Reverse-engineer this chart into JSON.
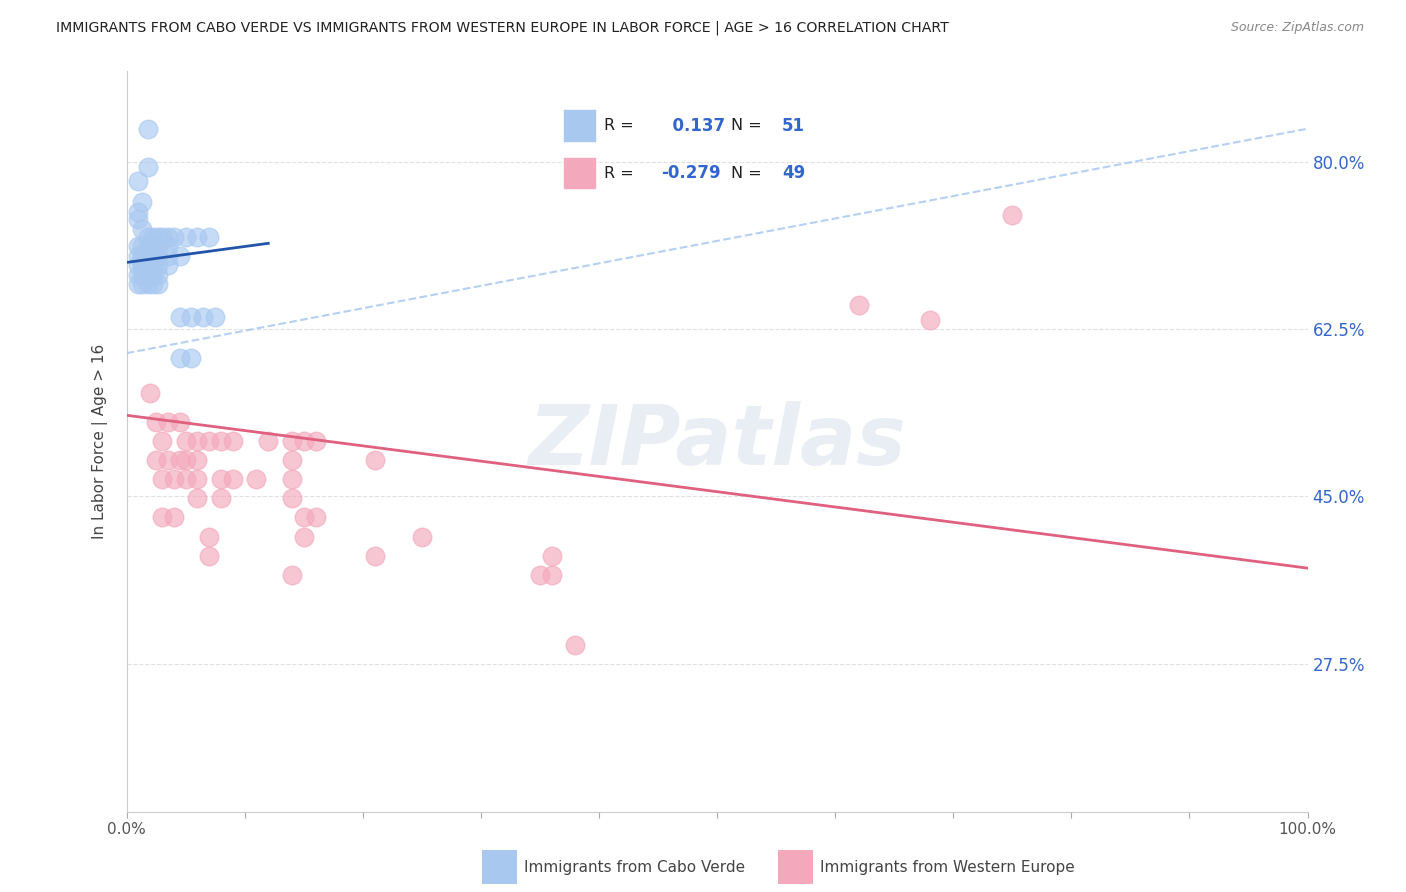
{
  "title": "IMMIGRANTS FROM CABO VERDE VS IMMIGRANTS FROM WESTERN EUROPE IN LABOR FORCE | AGE > 16 CORRELATION CHART",
  "source": "Source: ZipAtlas.com",
  "ylabel": "In Labor Force | Age > 16",
  "ytick_labels": [
    "80.0%",
    "62.5%",
    "45.0%",
    "27.5%"
  ],
  "ytick_values": [
    0.8,
    0.625,
    0.45,
    0.275
  ],
  "xlim": [
    0.0,
    1.0
  ],
  "ylim": [
    0.12,
    0.895
  ],
  "cabo_verde_R": 0.137,
  "cabo_verde_N": 51,
  "western_europe_R": -0.279,
  "western_europe_N": 49,
  "cabo_verde_color": "#A8C8F0",
  "western_europe_color": "#F4A8BC",
  "cabo_verde_line_color": "#2255AA",
  "western_europe_line_color": "#E06080",
  "cabo_verde_line_x0": 0.0,
  "cabo_verde_line_y0": 0.695,
  "cabo_verde_line_x1": 0.12,
  "cabo_verde_line_y1": 0.715,
  "western_europe_line_x0": 0.0,
  "western_europe_line_y0": 0.535,
  "western_europe_line_x1": 1.0,
  "western_europe_line_y1": 0.375,
  "dash_line_x0": 0.0,
  "dash_line_y0": 0.6,
  "dash_line_x1": 1.0,
  "dash_line_y1": 0.835,
  "cabo_verde_scatter_x": [
    0.018,
    0.018,
    0.01,
    0.013,
    0.01,
    0.01,
    0.013,
    0.018,
    0.022,
    0.027,
    0.03,
    0.035,
    0.04,
    0.05,
    0.06,
    0.07,
    0.01,
    0.013,
    0.018,
    0.022,
    0.027,
    0.035,
    0.01,
    0.013,
    0.018,
    0.022,
    0.027,
    0.035,
    0.045,
    0.01,
    0.013,
    0.018,
    0.022,
    0.027,
    0.035,
    0.01,
    0.013,
    0.018,
    0.022,
    0.027,
    0.01,
    0.013,
    0.018,
    0.022,
    0.027,
    0.045,
    0.055,
    0.065,
    0.075,
    0.045,
    0.055
  ],
  "cabo_verde_scatter_y": [
    0.835,
    0.795,
    0.78,
    0.758,
    0.748,
    0.74,
    0.73,
    0.722,
    0.722,
    0.722,
    0.722,
    0.722,
    0.722,
    0.722,
    0.722,
    0.722,
    0.712,
    0.712,
    0.712,
    0.712,
    0.712,
    0.712,
    0.702,
    0.702,
    0.702,
    0.702,
    0.702,
    0.702,
    0.702,
    0.692,
    0.692,
    0.692,
    0.692,
    0.692,
    0.692,
    0.682,
    0.682,
    0.682,
    0.682,
    0.682,
    0.672,
    0.672,
    0.672,
    0.672,
    0.672,
    0.638,
    0.638,
    0.638,
    0.638,
    0.595,
    0.595
  ],
  "western_europe_scatter_x": [
    0.02,
    0.025,
    0.035,
    0.045,
    0.03,
    0.05,
    0.06,
    0.07,
    0.08,
    0.09,
    0.12,
    0.14,
    0.15,
    0.16,
    0.025,
    0.035,
    0.045,
    0.05,
    0.06,
    0.14,
    0.21,
    0.03,
    0.04,
    0.05,
    0.06,
    0.08,
    0.09,
    0.11,
    0.14,
    0.06,
    0.08,
    0.14,
    0.03,
    0.04,
    0.15,
    0.16,
    0.07,
    0.15,
    0.25,
    0.07,
    0.21,
    0.36,
    0.14,
    0.35,
    0.36,
    0.62,
    0.68,
    0.75,
    0.38
  ],
  "western_europe_scatter_y": [
    0.558,
    0.528,
    0.528,
    0.528,
    0.508,
    0.508,
    0.508,
    0.508,
    0.508,
    0.508,
    0.508,
    0.508,
    0.508,
    0.508,
    0.488,
    0.488,
    0.488,
    0.488,
    0.488,
    0.488,
    0.488,
    0.468,
    0.468,
    0.468,
    0.468,
    0.468,
    0.468,
    0.468,
    0.468,
    0.448,
    0.448,
    0.448,
    0.428,
    0.428,
    0.428,
    0.428,
    0.408,
    0.408,
    0.408,
    0.388,
    0.388,
    0.388,
    0.368,
    0.368,
    0.368,
    0.65,
    0.635,
    0.745,
    0.295
  ],
  "watermark": "ZIPatlas",
  "background_color": "#FFFFFF",
  "grid_color": "#DDDDDD",
  "legend_label1": "Immigrants from Cabo Verde",
  "legend_label2": "Immigrants from Western Europe"
}
